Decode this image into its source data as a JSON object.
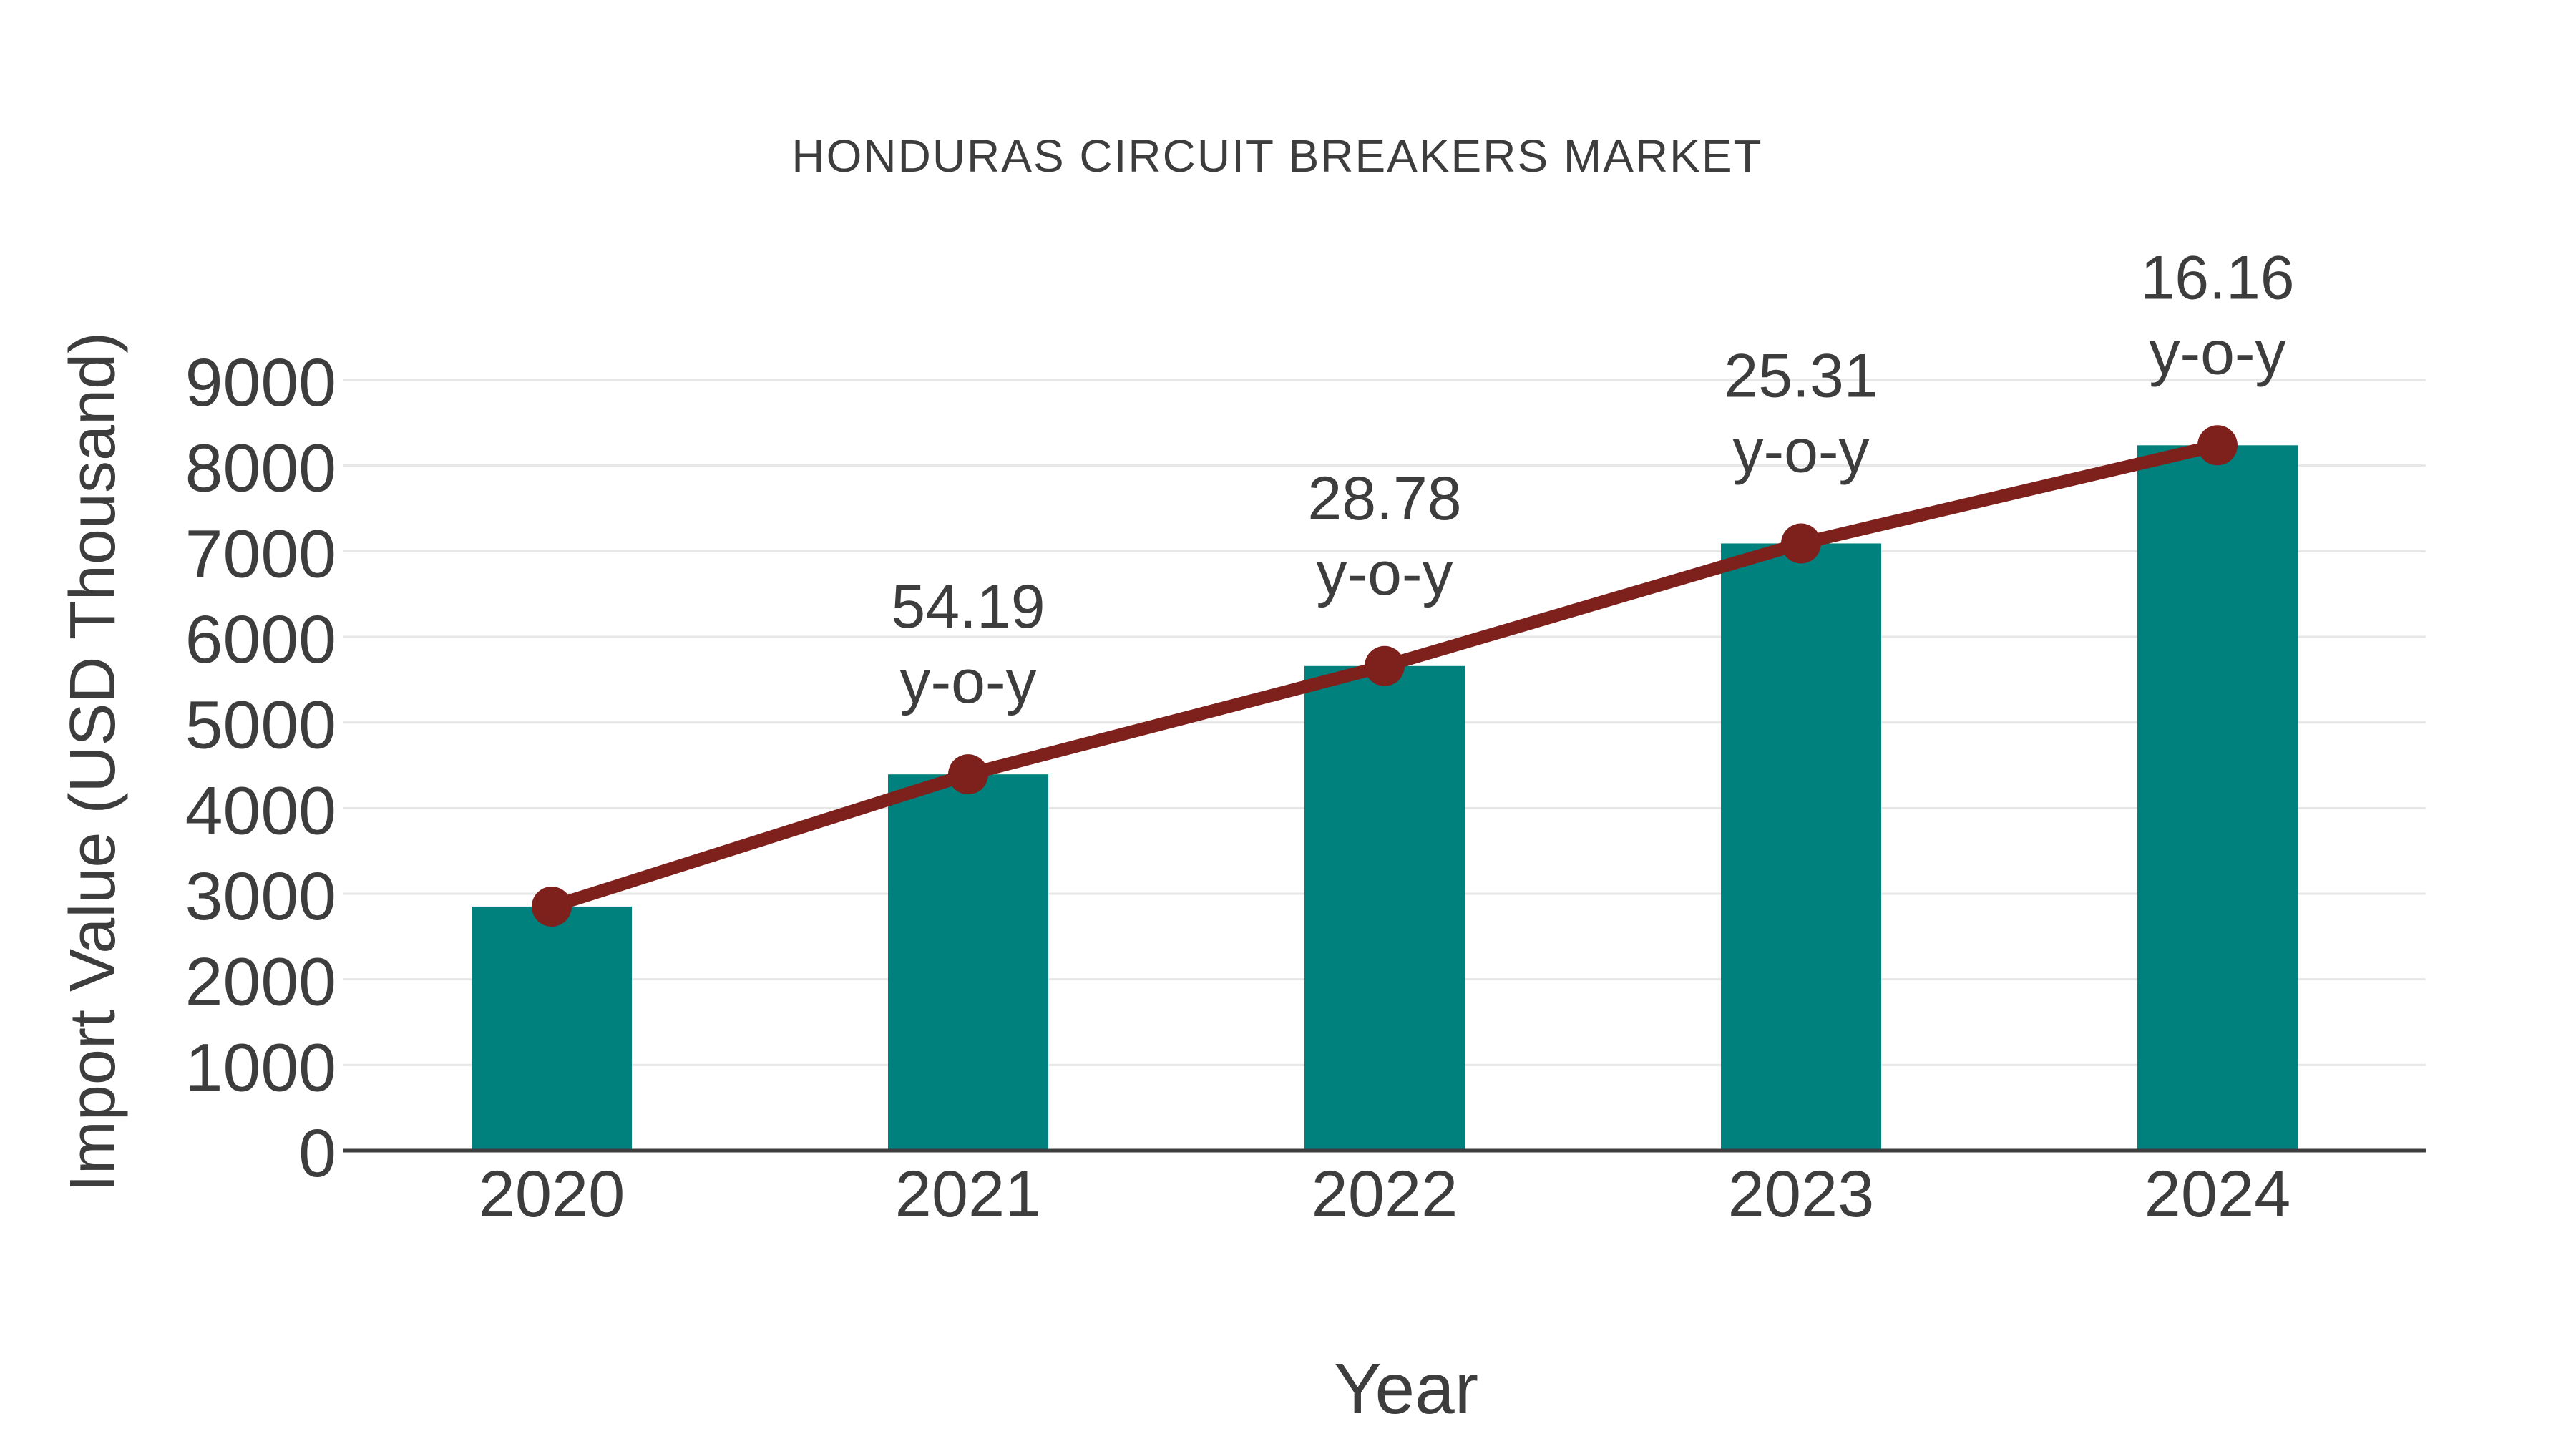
{
  "page": {
    "background": "#ffffff"
  },
  "chart_data": {
    "type": "bar",
    "title": "HONDURAS CIRCUIT BREAKERS MARKET",
    "xlabel": "Year",
    "ylabel": "Import Value (USD Thousand)",
    "categories": [
      "2020",
      "2021",
      "2022",
      "2023",
      "2024"
    ],
    "series": [
      {
        "name": "Import Value bars",
        "type": "bar",
        "color": "#00817d",
        "values": [
          2850,
          4394,
          5659,
          7091,
          8237
        ]
      },
      {
        "name": "Import Value trend line",
        "type": "line",
        "color": "#7e201c",
        "values": [
          2850,
          4394,
          5659,
          7091,
          8237
        ]
      }
    ],
    "annotations": [
      {
        "category": "2021",
        "lines": [
          "54.19",
          "y-o-y"
        ]
      },
      {
        "category": "2022",
        "lines": [
          "28.78",
          "y-o-y"
        ]
      },
      {
        "category": "2023",
        "lines": [
          "25.31",
          "y-o-y"
        ]
      },
      {
        "category": "2024",
        "lines": [
          "16.16",
          "y-o-y"
        ]
      }
    ],
    "ylim": [
      0,
      9000
    ],
    "yticks": [
      0,
      1000,
      2000,
      3000,
      4000,
      5000,
      6000,
      7000,
      8000,
      9000
    ],
    "grid": true,
    "legend": false,
    "colors": {
      "bar": "#00817d",
      "line": "#7e201c",
      "marker": "#7e201c",
      "text": "#3d3d3d",
      "gridline": "#e7e7e7",
      "axis_line": "#3d3d3d"
    }
  }
}
